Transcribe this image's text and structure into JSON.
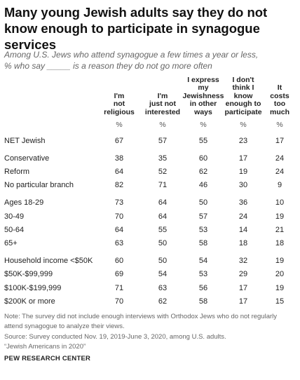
{
  "header": {
    "title": "Many young Jewish adults say they do not know enough to participate in synagogue services",
    "subtitle": [
      "Among U.S. Jews who attend synagogue a few times a year or less,",
      "% who say _____ is a reason they do not go more often"
    ]
  },
  "table": {
    "columns": [
      [
        "I'm",
        "not",
        "religious"
      ],
      [
        "I'm",
        "just not",
        "interested"
      ],
      [
        "I express",
        "my",
        "Jewishness",
        "in other",
        "ways"
      ],
      [
        "I don't",
        "think I",
        "know",
        "enough to",
        "participate"
      ],
      [
        "It",
        "costs",
        "too",
        "much"
      ]
    ],
    "percent_row": [
      "%",
      "%",
      "%",
      "%",
      "%"
    ],
    "groups": [
      [
        {
          "label": "NET Jewish",
          "values": [
            67,
            57,
            55,
            23,
            17
          ]
        }
      ],
      [
        {
          "label": "Conservative",
          "values": [
            38,
            35,
            60,
            17,
            24
          ]
        },
        {
          "label": "Reform",
          "values": [
            64,
            52,
            62,
            19,
            24
          ]
        },
        {
          "label": "No particular branch",
          "values": [
            82,
            71,
            46,
            30,
            9
          ]
        }
      ],
      [
        {
          "label": "Ages 18-29",
          "values": [
            73,
            64,
            50,
            36,
            10
          ]
        },
        {
          "label": "30-49",
          "values": [
            70,
            64,
            57,
            24,
            19
          ]
        },
        {
          "label": "50-64",
          "values": [
            64,
            55,
            53,
            14,
            21
          ]
        },
        {
          "label": "65+",
          "values": [
            63,
            50,
            58,
            18,
            18
          ]
        }
      ],
      [
        {
          "label": "Household income <$50K",
          "values": [
            60,
            50,
            54,
            32,
            19
          ]
        },
        {
          "label": "$50K-$99,999",
          "values": [
            69,
            54,
            53,
            29,
            20
          ]
        },
        {
          "label": "$100K-$199,999",
          "values": [
            71,
            63,
            56,
            17,
            19
          ]
        },
        {
          "label": "$200K or more",
          "values": [
            70,
            62,
            58,
            17,
            15
          ]
        }
      ]
    ]
  },
  "footer": {
    "note": "Note: The survey did not include enough interviews with Orthodox Jews who do not regularly attend synagogue to analyze their views.",
    "source": "Source: Survey conducted Nov. 19, 2019-June 3, 2020, among U.S. adults.",
    "report": "“Jewish Americans in 2020”",
    "brand": "PEW RESEARCH CENTER"
  }
}
